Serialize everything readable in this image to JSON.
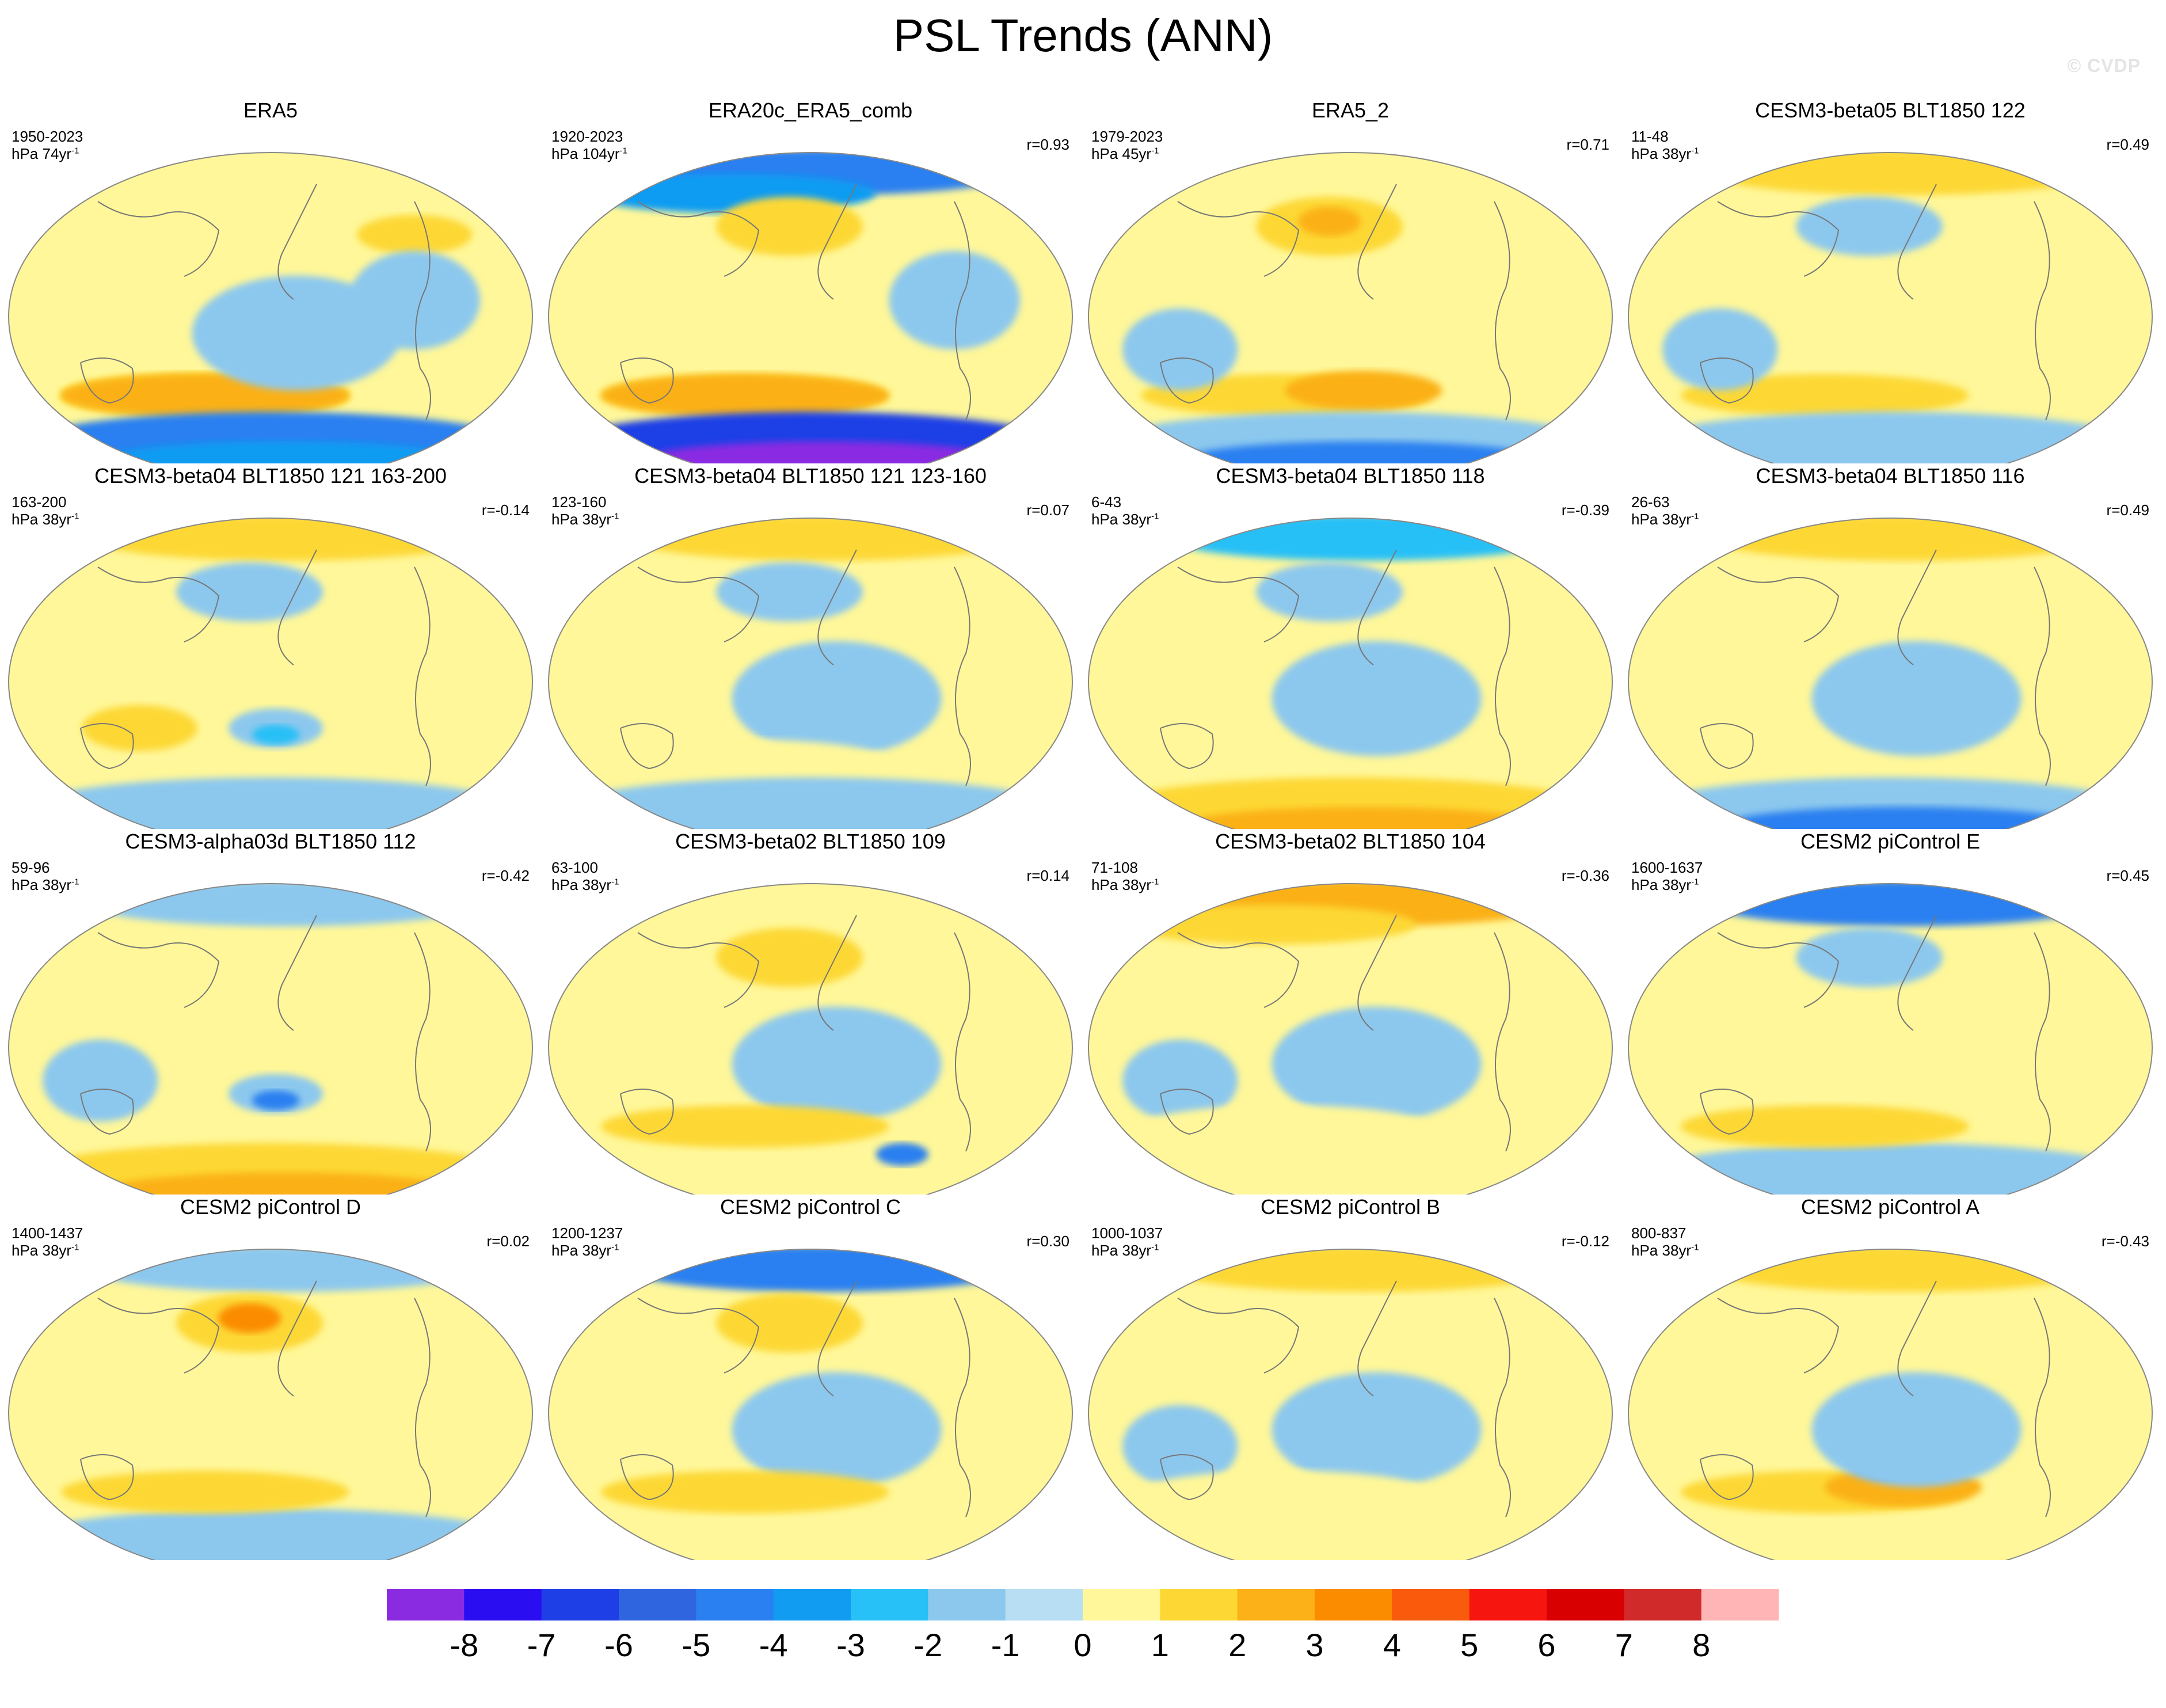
{
  "title": "PSL Trends (ANN)",
  "watermark": "© CVDP",
  "colorbar": {
    "colors": [
      "#8a2be2",
      "#2b0df2",
      "#1e3fe6",
      "#2f66e0",
      "#2a80f0",
      "#119cf2",
      "#27c0f7",
      "#8cc8ee",
      "#b8def3",
      "#fff799",
      "#fdd835",
      "#fbb117",
      "#fb8c00",
      "#f95a0b",
      "#f7150f",
      "#d80000",
      "#d02a2a",
      "#ffb5b5"
    ],
    "labels": [
      "-8",
      "-7",
      "-6",
      "-5",
      "-4",
      "-3",
      "-2",
      "-1",
      "0",
      "1",
      "2",
      "3",
      "4",
      "5",
      "6",
      "7",
      "8"
    ]
  },
  "panels": [
    {
      "name": "ERA5",
      "years": "1950-2023",
      "units": "hPa 74yr",
      "units_exp": "-1",
      "r": "",
      "blobs": [
        [
          "sw",
          "#fff799"
        ],
        [
          "sw",
          "#fff799"
        ],
        [
          "ss",
          "#fdd835"
        ],
        [
          "ss",
          "#fdd835"
        ],
        [
          "ss",
          "#fbb117"
        ],
        [
          "nn",
          "#fdd835"
        ],
        [
          "na",
          "#8cc8ee"
        ],
        [
          "ant",
          "#2a80f0"
        ],
        [
          "ant2",
          "#119cf2"
        ],
        [
          "pac",
          "#8cc8ee"
        ]
      ]
    },
    {
      "name": "ERA20c_ERA5_comb",
      "years": "1920-2023",
      "units": "hPa 104yr",
      "units_exp": "-1",
      "r": "r=0.93",
      "blobs": [
        [
          "arc",
          "#2a80f0"
        ],
        [
          "arc2",
          "#119cf2"
        ],
        [
          "ss",
          "#fdd835"
        ],
        [
          "ss",
          "#fbb117"
        ],
        [
          "np",
          "#fdd835"
        ],
        [
          "ant",
          "#1e3fe6"
        ],
        [
          "ant2",
          "#8a2be2"
        ],
        [
          "na",
          "#8cc8ee"
        ]
      ]
    },
    {
      "name": "ERA5_2",
      "years": "1979-2023",
      "units": "hPa 45yr",
      "units_exp": "-1",
      "r": "r=0.71",
      "blobs": [
        [
          "np",
          "#fdd835"
        ],
        [
          "np2",
          "#fbb117"
        ],
        [
          "ss",
          "#fdd835"
        ],
        [
          "ss2",
          "#fbb117"
        ],
        [
          "ant",
          "#8cc8ee"
        ],
        [
          "ant2",
          "#2a80f0"
        ],
        [
          "ind",
          "#8cc8ee"
        ]
      ]
    },
    {
      "name": "CESM3-beta05 BLT1850 122",
      "years": "11-48",
      "units": "hPa 38yr",
      "units_exp": "-1",
      "r": "r=0.49",
      "blobs": [
        [
          "arc",
          "#fdd835"
        ],
        [
          "np",
          "#8cc8ee"
        ],
        [
          "ss",
          "#fdd835"
        ],
        [
          "ant",
          "#8cc8ee"
        ],
        [
          "ind",
          "#8cc8ee"
        ]
      ]
    },
    {
      "name": "CESM3-beta04 BLT1850 121 163-200",
      "years": "163-200",
      "units": "hPa 38yr",
      "units_exp": "-1",
      "r": "r=-0.14",
      "blobs": [
        [
          "arc",
          "#fdd835"
        ],
        [
          "np",
          "#8cc8ee"
        ],
        [
          "aus",
          "#fdd835"
        ],
        [
          "sp",
          "#8cc8ee"
        ],
        [
          "sp2",
          "#27c0f7"
        ],
        [
          "ant",
          "#8cc8ee"
        ]
      ]
    },
    {
      "name": "CESM3-beta04 BLT1850 121 123-160",
      "years": "123-160",
      "units": "hPa 38yr",
      "units_exp": "-1",
      "r": "r=0.07",
      "blobs": [
        [
          "arc",
          "#fdd835"
        ],
        [
          "np",
          "#8cc8ee"
        ],
        [
          "pac",
          "#8cc8ee"
        ],
        [
          "ss",
          "#fff799"
        ],
        [
          "ant",
          "#8cc8ee"
        ]
      ]
    },
    {
      "name": "CESM3-beta04 BLT1850 118",
      "years": "6-43",
      "units": "hPa 38yr",
      "units_exp": "-1",
      "r": "r=-0.39",
      "blobs": [
        [
          "arc",
          "#27c0f7"
        ],
        [
          "np",
          "#8cc8ee"
        ],
        [
          "ant",
          "#fdd835"
        ],
        [
          "ant2",
          "#fbb117"
        ],
        [
          "pac",
          "#8cc8ee"
        ]
      ]
    },
    {
      "name": "CESM3-beta04 BLT1850 116",
      "years": "26-63",
      "units": "hPa 38yr",
      "units_exp": "-1",
      "r": "r=0.49",
      "blobs": [
        [
          "arc",
          "#fdd835"
        ],
        [
          "ant",
          "#8cc8ee"
        ],
        [
          "ant2",
          "#2a80f0"
        ],
        [
          "pac",
          "#8cc8ee"
        ]
      ]
    },
    {
      "name": "CESM3-alpha03d BLT1850 112",
      "years": "59-96",
      "units": "hPa 38yr",
      "units_exp": "-1",
      "r": "r=-0.42",
      "blobs": [
        [
          "arc",
          "#8cc8ee"
        ],
        [
          "ind",
          "#8cc8ee"
        ],
        [
          "sp",
          "#8cc8ee"
        ],
        [
          "sp2",
          "#2a80f0"
        ],
        [
          "ant",
          "#fdd835"
        ],
        [
          "ant2",
          "#fbb117"
        ]
      ]
    },
    {
      "name": "CESM3-beta02 BLT1850 109",
      "years": "63-100",
      "units": "hPa 38yr",
      "units_exp": "-1",
      "r": "r=0.14",
      "blobs": [
        [
          "np",
          "#fdd835"
        ],
        [
          "pac",
          "#8cc8ee"
        ],
        [
          "ss",
          "#fdd835"
        ],
        [
          "sa",
          "#2a80f0"
        ]
      ]
    },
    {
      "name": "CESM3-beta02 BLT1850 104",
      "years": "71-108",
      "units": "hPa 38yr",
      "units_exp": "-1",
      "r": "r=-0.36",
      "blobs": [
        [
          "arc",
          "#fbb117"
        ],
        [
          "arc2",
          "#fdd835"
        ],
        [
          "pac",
          "#8cc8ee"
        ],
        [
          "ind",
          "#8cc8ee"
        ],
        [
          "ss",
          "#fff799"
        ]
      ]
    },
    {
      "name": "CESM2 piControl E",
      "years": "1600-1637",
      "units": "hPa 38yr",
      "units_exp": "-1",
      "r": "r=0.45",
      "blobs": [
        [
          "arc",
          "#2a80f0"
        ],
        [
          "np",
          "#8cc8ee"
        ],
        [
          "ant",
          "#8cc8ee"
        ],
        [
          "ss",
          "#fdd835"
        ]
      ]
    },
    {
      "name": "CESM2 piControl D",
      "years": "1400-1437",
      "units": "hPa 38yr",
      "units_exp": "-1",
      "r": "r=0.02",
      "blobs": [
        [
          "arc",
          "#8cc8ee"
        ],
        [
          "np",
          "#fdd835"
        ],
        [
          "np2",
          "#fb8c00"
        ],
        [
          "ant",
          "#8cc8ee"
        ],
        [
          "ss",
          "#fdd835"
        ]
      ]
    },
    {
      "name": "CESM2 piControl C",
      "years": "1200-1237",
      "units": "hPa 38yr",
      "units_exp": "-1",
      "r": "r=0.30",
      "blobs": [
        [
          "arc",
          "#2a80f0"
        ],
        [
          "np",
          "#fdd835"
        ],
        [
          "pac",
          "#8cc8ee"
        ],
        [
          "ss",
          "#fdd835"
        ]
      ]
    },
    {
      "name": "CESM2 piControl B",
      "years": "1000-1037",
      "units": "hPa 38yr",
      "units_exp": "-1",
      "r": "r=-0.12",
      "blobs": [
        [
          "arc",
          "#fdd835"
        ],
        [
          "pac",
          "#8cc8ee"
        ],
        [
          "ind",
          "#8cc8ee"
        ],
        [
          "ss",
          "#fff799"
        ]
      ]
    },
    {
      "name": "CESM2 piControl A",
      "years": "800-837",
      "units": "hPa 38yr",
      "units_exp": "-1",
      "r": "r=-0.43",
      "blobs": [
        [
          "arc",
          "#fdd835"
        ],
        [
          "ss",
          "#fdd835"
        ],
        [
          "ss2",
          "#fbb117"
        ],
        [
          "sp",
          "#2a80f0"
        ],
        [
          "pac",
          "#8cc8ee"
        ]
      ]
    }
  ]
}
